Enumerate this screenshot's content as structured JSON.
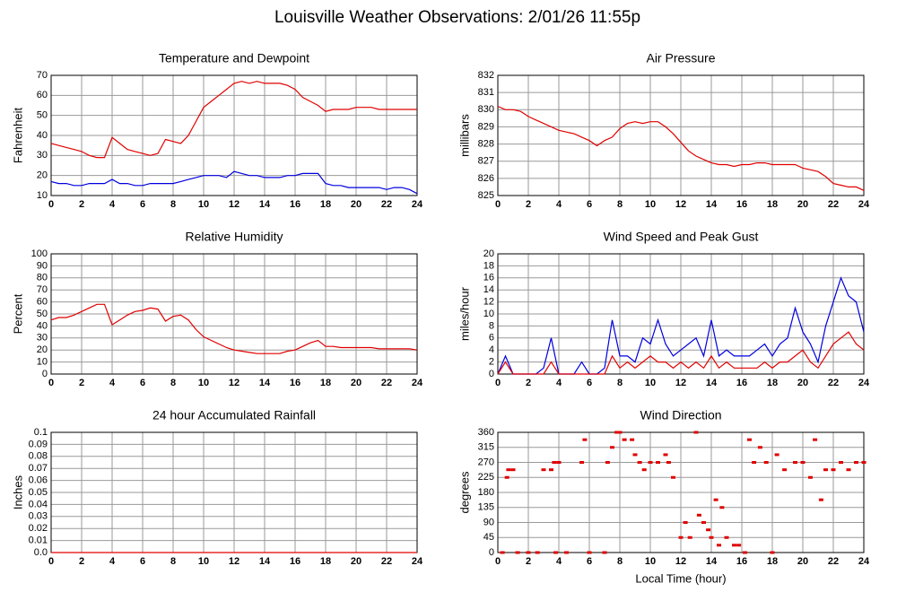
{
  "title": "Louisville Weather Observations: 2/01/26 11:55p",
  "chart_data": [
    {
      "type": "line",
      "title": "Temperature and Dewpoint",
      "ylabel": "Fahrenheit",
      "grid": true,
      "x": [
        0,
        0.5,
        1,
        1.5,
        2,
        2.5,
        3,
        3.5,
        4,
        4.5,
        5,
        5.5,
        6,
        6.5,
        7,
        7.5,
        8,
        8.5,
        9,
        9.5,
        10,
        10.5,
        11,
        11.5,
        12,
        12.5,
        13,
        13.5,
        14,
        14.5,
        15,
        15.5,
        16,
        16.5,
        17,
        17.5,
        18,
        18.5,
        19,
        19.5,
        20,
        20.5,
        21,
        21.5,
        22,
        22.5,
        23,
        23.5,
        24
      ],
      "xlim": [
        0,
        24
      ],
      "xticks": [
        0,
        2,
        4,
        6,
        8,
        10,
        12,
        14,
        16,
        18,
        20,
        22,
        24
      ],
      "ylim": [
        10,
        70
      ],
      "yticks": [
        10,
        20,
        30,
        40,
        50,
        60,
        70
      ],
      "series": [
        {
          "color": "#e00000",
          "values": [
            36,
            35,
            34,
            33,
            32,
            30,
            29,
            29,
            39,
            36,
            33,
            32,
            31,
            30,
            31,
            38,
            37,
            36,
            40,
            47,
            54,
            57,
            60,
            63,
            66,
            67,
            66,
            67,
            66,
            66,
            66,
            65,
            63,
            59,
            57,
            55,
            52,
            53,
            53,
            53,
            54,
            54,
            54,
            53,
            53,
            53,
            53,
            53,
            53
          ]
        },
        {
          "color": "#0000e0",
          "values": [
            17,
            16,
            16,
            15,
            15,
            16,
            16,
            16,
            18,
            16,
            16,
            15,
            15,
            16,
            16,
            16,
            16,
            17,
            18,
            19,
            20,
            20,
            20,
            19,
            22,
            21,
            20,
            20,
            19,
            19,
            19,
            20,
            20,
            21,
            21,
            21,
            16,
            15,
            15,
            14,
            14,
            14,
            14,
            14,
            13,
            14,
            14,
            13,
            11
          ]
        }
      ]
    },
    {
      "type": "line",
      "title": "Air Pressure",
      "ylabel": "millibars",
      "grid": true,
      "x": [
        0,
        0.5,
        1,
        1.5,
        2,
        2.5,
        3,
        3.5,
        4,
        4.5,
        5,
        5.5,
        6,
        6.5,
        7,
        7.5,
        8,
        8.5,
        9,
        9.5,
        10,
        10.5,
        11,
        11.5,
        12,
        12.5,
        13,
        13.5,
        14,
        14.5,
        15,
        15.5,
        16,
        16.5,
        17,
        17.5,
        18,
        18.5,
        19,
        19.5,
        20,
        20.5,
        21,
        21.5,
        22,
        22.5,
        23,
        23.5,
        24
      ],
      "xlim": [
        0,
        24
      ],
      "xticks": [
        0,
        2,
        4,
        6,
        8,
        10,
        12,
        14,
        16,
        18,
        20,
        22,
        24
      ],
      "ylim": [
        825,
        832
      ],
      "yticks": [
        825,
        826,
        827,
        828,
        829,
        830,
        831,
        832
      ],
      "series": [
        {
          "color": "#e00000",
          "values": [
            830.2,
            830.0,
            830.0,
            829.9,
            829.6,
            829.4,
            829.2,
            829.0,
            828.8,
            828.7,
            828.6,
            828.4,
            828.2,
            827.9,
            828.2,
            828.4,
            828.9,
            829.2,
            829.3,
            829.2,
            829.3,
            829.3,
            829.0,
            828.6,
            828.1,
            827.6,
            827.3,
            827.1,
            826.9,
            826.8,
            826.8,
            826.7,
            826.8,
            826.8,
            826.9,
            826.9,
            826.8,
            826.8,
            826.8,
            826.8,
            826.6,
            826.5,
            826.4,
            826.1,
            825.7,
            825.6,
            825.5,
            825.5,
            825.3
          ]
        }
      ]
    },
    {
      "type": "line",
      "title": "Relative Humidity",
      "ylabel": "Percent",
      "grid": true,
      "x": [
        0,
        0.5,
        1,
        1.5,
        2,
        2.5,
        3,
        3.5,
        4,
        4.5,
        5,
        5.5,
        6,
        6.5,
        7,
        7.5,
        8,
        8.5,
        9,
        9.5,
        10,
        10.5,
        11,
        11.5,
        12,
        12.5,
        13,
        13.5,
        14,
        14.5,
        15,
        15.5,
        16,
        16.5,
        17,
        17.5,
        18,
        18.5,
        19,
        19.5,
        20,
        20.5,
        21,
        21.5,
        22,
        22.5,
        23,
        23.5,
        24
      ],
      "xlim": [
        0,
        24
      ],
      "xticks": [
        0,
        2,
        4,
        6,
        8,
        10,
        12,
        14,
        16,
        18,
        20,
        22,
        24
      ],
      "ylim": [
        0,
        100
      ],
      "yticks": [
        0,
        10,
        20,
        30,
        40,
        50,
        60,
        70,
        80,
        90,
        100
      ],
      "series": [
        {
          "color": "#e00000",
          "values": [
            45,
            47,
            47,
            49,
            52,
            55,
            58,
            58,
            41,
            45,
            49,
            52,
            53,
            55,
            54,
            44,
            48,
            49,
            45,
            37,
            31,
            28,
            25,
            22,
            20,
            19,
            18,
            17,
            17,
            17,
            17,
            19,
            20,
            23,
            26,
            28,
            23,
            23,
            22,
            22,
            22,
            22,
            22,
            21,
            21,
            21,
            21,
            21,
            20
          ]
        }
      ]
    },
    {
      "type": "line",
      "title": "Wind Speed and Peak Gust",
      "ylabel": "miles/hour",
      "grid": true,
      "x": [
        0,
        0.5,
        1,
        1.5,
        2,
        2.5,
        3,
        3.5,
        4,
        4.5,
        5,
        5.5,
        6,
        6.5,
        7,
        7.5,
        8,
        8.5,
        9,
        9.5,
        10,
        10.5,
        11,
        11.5,
        12,
        12.5,
        13,
        13.5,
        14,
        14.5,
        15,
        15.5,
        16,
        16.5,
        17,
        17.5,
        18,
        18.5,
        19,
        19.5,
        20,
        20.5,
        21,
        21.5,
        22,
        22.5,
        23,
        23.5,
        24
      ],
      "xlim": [
        0,
        24
      ],
      "xticks": [
        0,
        2,
        4,
        6,
        8,
        10,
        12,
        14,
        16,
        18,
        20,
        22,
        24
      ],
      "ylim": [
        0,
        20
      ],
      "yticks": [
        0,
        2,
        4,
        6,
        8,
        10,
        12,
        14,
        16,
        18,
        20
      ],
      "series": [
        {
          "color": "#0000e0",
          "values": [
            0,
            3,
            0,
            0,
            0,
            0,
            1,
            6,
            0,
            0,
            0,
            2,
            0,
            0,
            1,
            9,
            3,
            3,
            2,
            6,
            5,
            9,
            5,
            3,
            4,
            5,
            6,
            3,
            9,
            3,
            4,
            3,
            3,
            3,
            4,
            5,
            3,
            5,
            6,
            11,
            7,
            5,
            2,
            8,
            12,
            16,
            13,
            12,
            7
          ]
        },
        {
          "color": "#e00000",
          "values": [
            0,
            2,
            0,
            0,
            0,
            0,
            0,
            2,
            0,
            0,
            0,
            0,
            0,
            0,
            0,
            3,
            1,
            2,
            1,
            2,
            3,
            2,
            2,
            1,
            2,
            1,
            2,
            1,
            3,
            1,
            2,
            1,
            1,
            1,
            1,
            2,
            1,
            2,
            2,
            3,
            4,
            2,
            1,
            3,
            5,
            6,
            7,
            5,
            4
          ]
        }
      ]
    },
    {
      "type": "line",
      "title": "24 hour Accumulated Rainfall",
      "ylabel": "Inches",
      "grid": true,
      "x": [
        0,
        24
      ],
      "xlim": [
        0,
        24
      ],
      "xticks": [
        0,
        2,
        4,
        6,
        8,
        10,
        12,
        14,
        16,
        18,
        20,
        22,
        24
      ],
      "ylim": [
        0,
        0.1
      ],
      "yticks": [
        {
          "value": 0,
          "label": "0.0"
        },
        0.01,
        0.02,
        0.03,
        0.04,
        0.05,
        0.06,
        0.07,
        0.08,
        0.09,
        0.1
      ],
      "series": [
        {
          "color": "#e00000",
          "values": [
            0,
            0
          ]
        }
      ]
    },
    {
      "type": "scatter",
      "title": "Wind Direction",
      "ylabel": "degrees",
      "xlabel": "Local Time (hour)",
      "grid": true,
      "color": "#e00000",
      "x": [
        0.3,
        0.6,
        0.7,
        1,
        1.3,
        2,
        2.6,
        3,
        3.5,
        3.7,
        4,
        3.8,
        4.5,
        5.5,
        5.7,
        6,
        7,
        7.2,
        7.5,
        7.8,
        8,
        8.3,
        8.8,
        9,
        9.3,
        9.6,
        10,
        10.5,
        11,
        11.2,
        11.5,
        12,
        12.3,
        12.6,
        13,
        13.2,
        13.5,
        13.8,
        14,
        14.3,
        14.5,
        14.7,
        15,
        15.5,
        15.8,
        16.2,
        16.5,
        16.8,
        17.2,
        17.6,
        18,
        18.3,
        18.8,
        19.5,
        20,
        20.5,
        20.8,
        21.2,
        21.5,
        22,
        22.5,
        23,
        23.5,
        24
      ],
      "values": [
        0,
        225,
        248,
        248,
        0,
        0,
        0,
        248,
        248,
        270,
        270,
        0,
        0,
        270,
        338,
        0,
        0,
        270,
        315,
        360,
        360,
        338,
        338,
        293,
        270,
        248,
        270,
        270,
        293,
        270,
        225,
        45,
        90,
        45,
        360,
        112,
        90,
        68,
        45,
        158,
        22,
        135,
        45,
        22,
        22,
        0,
        338,
        270,
        315,
        270,
        0,
        293,
        248,
        270,
        270,
        225,
        338,
        158,
        248,
        248,
        270,
        248,
        270,
        270
      ],
      "xlim": [
        0,
        24
      ],
      "xticks": [
        0,
        2,
        4,
        6,
        8,
        10,
        12,
        14,
        16,
        18,
        20,
        22,
        24
      ],
      "ylim": [
        0,
        360
      ],
      "yticks": [
        0,
        45,
        90,
        135,
        180,
        225,
        270,
        315,
        360
      ]
    }
  ]
}
